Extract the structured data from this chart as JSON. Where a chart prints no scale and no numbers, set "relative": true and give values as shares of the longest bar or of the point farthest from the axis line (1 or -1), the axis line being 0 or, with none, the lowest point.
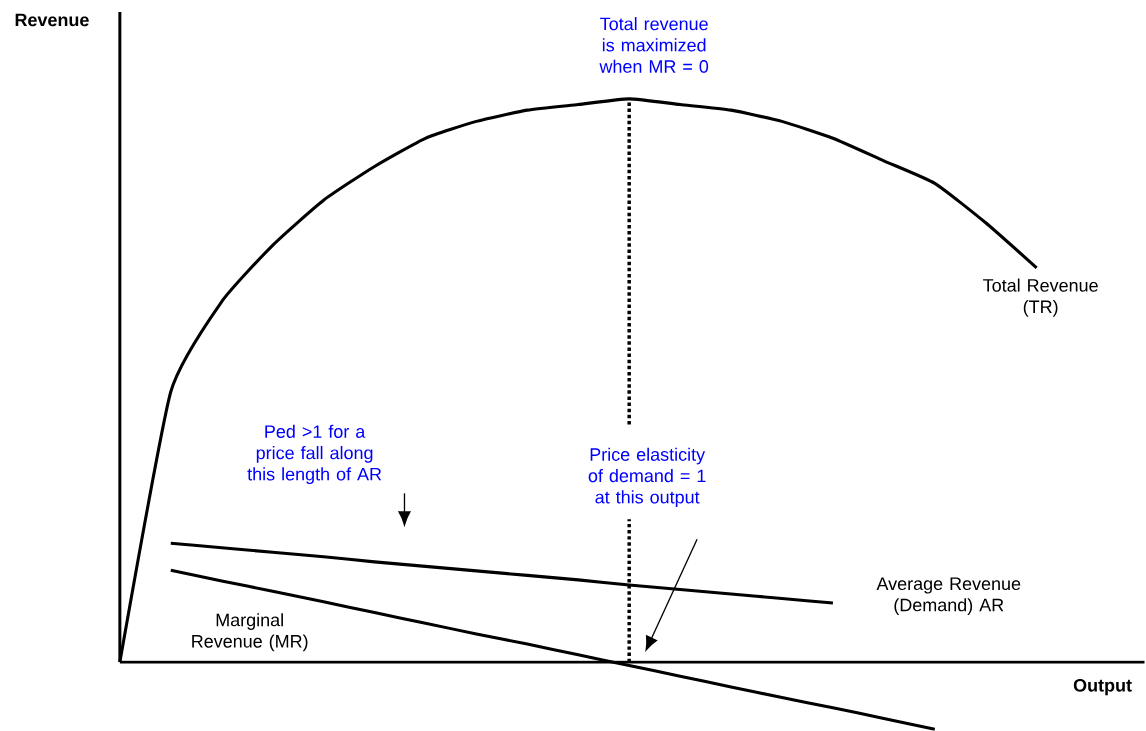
{
  "chart_data": {
    "type": "line",
    "relative": true,
    "xlabel": "Output",
    "ylabel": "Revenue",
    "marker": "none",
    "line_style": "solid",
    "categories": [
      null,
      null,
      null,
      null,
      null,
      null,
      null,
      null,
      null,
      null,
      null,
      null,
      null,
      null,
      null,
      null,
      null,
      null,
      null,
      null,
      null
    ],
    "series": [
      {
        "name": "Total Revenue (TR)",
        "color": "#000000",
        "values": [
          0,
          0.48,
          0.64,
          0.74,
          0.82,
          0.88,
          0.93,
          0.96,
          0.98,
          0.99,
          1.0,
          0.99,
          0.98,
          0.96,
          0.93,
          0.89,
          0.85,
          0.78,
          0.7,
          null,
          null
        ]
      },
      {
        "name": "Average Revenue (Demand) AR",
        "color": "#000000",
        "values": [
          null,
          0.211,
          0.203,
          0.195,
          0.187,
          0.178,
          0.17,
          0.162,
          0.154,
          0.146,
          0.137,
          0.129,
          0.121,
          0.113,
          0.105,
          null,
          null,
          null,
          null,
          null,
          null
        ]
      },
      {
        "name": "Marginal Revenue (MR)",
        "color": "#000000",
        "values": [
          null,
          0.163,
          0.144,
          0.126,
          0.107,
          0.088,
          0.069,
          0.05,
          0.032,
          0.013,
          -0.006,
          -0.025,
          -0.044,
          -0.063,
          -0.081,
          -0.1,
          -0.119,
          null,
          null,
          null,
          null
        ]
      }
    ],
    "annotations": [
      "Total revenue is maximized when MR = 0",
      "Ped >1 for a price fall along this length of AR",
      "Price elasticity of demand = 1 at this output"
    ]
  }
}
